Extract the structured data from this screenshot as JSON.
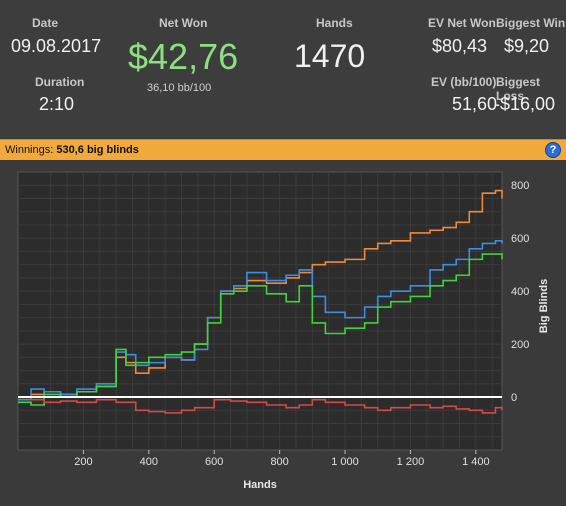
{
  "stats": {
    "date": {
      "label": "Date",
      "value": "09.08.2017"
    },
    "duration": {
      "label": "Duration",
      "value": "2:10"
    },
    "net_won": {
      "label": "Net Won",
      "value": "$42,76",
      "sub": "36,10 bb/100"
    },
    "hands": {
      "label": "Hands",
      "value": "1470"
    },
    "ev_net_won": {
      "label": "EV Net Won",
      "value": "$80,43"
    },
    "ev_bb100": {
      "label": "EV (bb/100)",
      "value": "51,60"
    },
    "biggest_win": {
      "label": "Biggest Win",
      "value": "$9,20"
    },
    "biggest_loss": {
      "label": "Biggest Loss",
      "value": "-$16,00"
    }
  },
  "winnings_bar": {
    "prefix": "Winnings:",
    "value": "530,6 big blinds",
    "help_icon": "question-circle-icon"
  },
  "colors": {
    "net_won": "#8be07f",
    "orange_series": "#f08a3a",
    "blue_series": "#3c8fe0",
    "green_series": "#3fd43a",
    "red_series": "#d24a4a",
    "zero_line": "#ffffff",
    "header_bar": "#f2a93b"
  },
  "chart_data": {
    "type": "line",
    "xlabel": "Hands",
    "ylabel": "Big Blinds",
    "xlim": [
      0,
      1480
    ],
    "ylim": [
      -200,
      850
    ],
    "x_ticks": [
      200,
      400,
      600,
      800,
      1000,
      1200,
      1400
    ],
    "x_tick_labels": [
      "200",
      "400",
      "600",
      "800",
      "1 000",
      "1 200",
      "1 400"
    ],
    "y_ticks": [
      0,
      200,
      400,
      600,
      800
    ],
    "y_tick_labels": [
      "0",
      "200",
      "400",
      "600",
      "800"
    ],
    "grid": true,
    "series": [
      {
        "color_key": "orange_series",
        "x": [
          0,
          40,
          80,
          130,
          180,
          240,
          300,
          330,
          360,
          400,
          450,
          500,
          540,
          580,
          620,
          660,
          700,
          760,
          820,
          860,
          900,
          940,
          1000,
          1060,
          1100,
          1140,
          1200,
          1260,
          1300,
          1340,
          1380,
          1420,
          1460,
          1480
        ],
        "y": [
          -10,
          10,
          20,
          10,
          20,
          40,
          150,
          130,
          90,
          110,
          150,
          140,
          200,
          300,
          400,
          410,
          440,
          430,
          450,
          470,
          500,
          510,
          520,
          560,
          580,
          590,
          620,
          630,
          640,
          660,
          700,
          770,
          780,
          750
        ]
      },
      {
        "color_key": "blue_series",
        "x": [
          0,
          40,
          80,
          130,
          180,
          240,
          300,
          330,
          360,
          400,
          450,
          500,
          540,
          580,
          620,
          660,
          700,
          760,
          820,
          860,
          900,
          940,
          1000,
          1060,
          1100,
          1140,
          1200,
          1260,
          1300,
          1340,
          1380,
          1420,
          1460,
          1480
        ],
        "y": [
          -10,
          30,
          20,
          10,
          30,
          50,
          170,
          160,
          120,
          130,
          150,
          140,
          180,
          300,
          400,
          420,
          470,
          440,
          460,
          480,
          380,
          320,
          300,
          340,
          380,
          400,
          420,
          480,
          500,
          520,
          560,
          580,
          590,
          580
        ]
      },
      {
        "color_key": "green_series",
        "x": [
          0,
          40,
          80,
          130,
          180,
          240,
          300,
          330,
          360,
          400,
          450,
          500,
          540,
          580,
          620,
          660,
          700,
          760,
          820,
          860,
          900,
          940,
          1000,
          1060,
          1100,
          1140,
          1200,
          1260,
          1300,
          1340,
          1380,
          1420,
          1460,
          1480
        ],
        "y": [
          -20,
          -30,
          10,
          0,
          20,
          40,
          180,
          120,
          130,
          150,
          160,
          170,
          200,
          280,
          390,
          400,
          420,
          390,
          360,
          420,
          280,
          240,
          260,
          280,
          340,
          360,
          380,
          420,
          440,
          460,
          520,
          540,
          540,
          520
        ]
      },
      {
        "color_key": "red_series",
        "x": [
          0,
          40,
          80,
          130,
          180,
          240,
          300,
          360,
          400,
          450,
          500,
          540,
          600,
          650,
          700,
          760,
          820,
          860,
          900,
          940,
          1000,
          1060,
          1100,
          1140,
          1200,
          1260,
          1300,
          1340,
          1380,
          1420,
          1460,
          1480
        ],
        "y": [
          0,
          -10,
          -20,
          -15,
          -20,
          -10,
          -20,
          -50,
          -55,
          -60,
          -50,
          -40,
          -10,
          -15,
          -20,
          -30,
          -40,
          -30,
          -10,
          -20,
          -30,
          -40,
          -50,
          -40,
          -30,
          -40,
          -35,
          -45,
          -50,
          -60,
          -40,
          -50
        ]
      }
    ]
  }
}
